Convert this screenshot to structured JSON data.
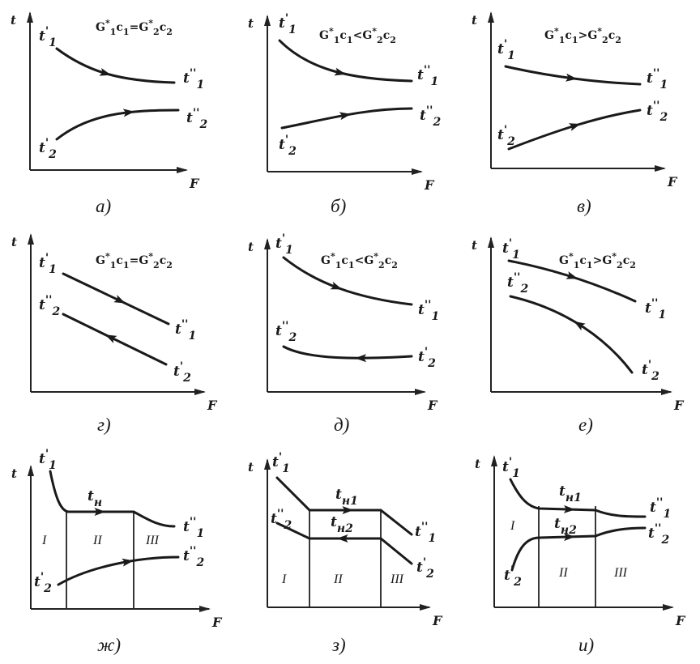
{
  "labels": {
    "axis_t": "t",
    "axis_F": "F",
    "t1_in": "t'1",
    "t1_out": "t''1",
    "t2_in": "t'2",
    "t2_out": "t''2",
    "t_n": "tн",
    "t_n1": "tн1",
    "t_n2": "tн2",
    "zone_1": "I",
    "zone_2": "II",
    "zone_3": "III"
  },
  "panels": [
    {
      "id": "a",
      "caption": "а)",
      "condition": "G*1c1=G*2c2"
    },
    {
      "id": "b",
      "caption": "б)",
      "condition": "G*1c1<G*2c2"
    },
    {
      "id": "v",
      "caption": "в)",
      "condition": "G*1c1>G*2c2"
    },
    {
      "id": "g",
      "caption": "г)",
      "condition": "G*1c1=G*2c2"
    },
    {
      "id": "d",
      "caption": "д)",
      "condition": "G*1c1<G*2c2"
    },
    {
      "id": "e",
      "caption": "е)",
      "condition": "G*1c1>G*2c2"
    },
    {
      "id": "zh",
      "caption": "ж)",
      "condition": ""
    },
    {
      "id": "z",
      "caption": "з)",
      "condition": ""
    },
    {
      "id": "i",
      "caption": "и)",
      "condition": ""
    }
  ]
}
